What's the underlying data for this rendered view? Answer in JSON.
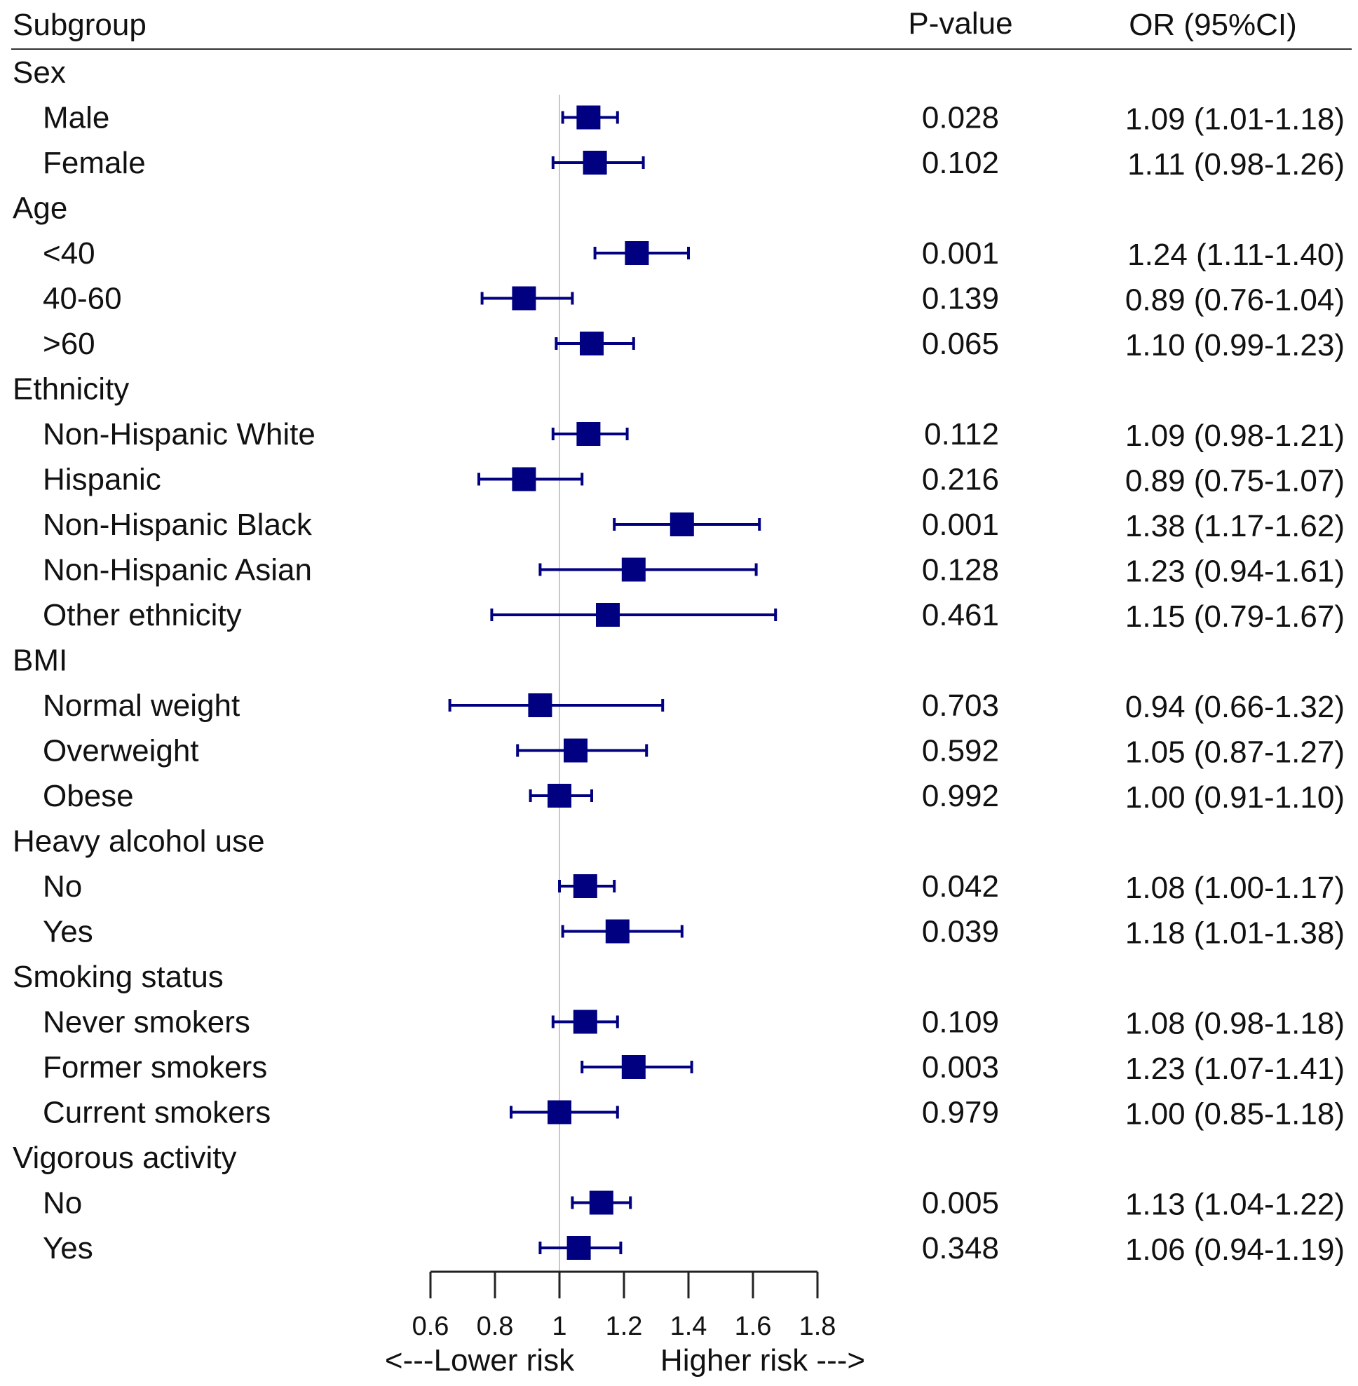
{
  "chart_data": {
    "type": "forest",
    "headers": {
      "subgroup": "Subgroup",
      "pvalue": "P-value",
      "or": "OR (95%CI)"
    },
    "xlim": [
      0.6,
      1.8
    ],
    "xticks": [
      "0.6",
      "0.8",
      "1",
      "1.2",
      "1.4",
      "1.6",
      "1.8"
    ],
    "xtick_values": [
      0.6,
      0.8,
      1.0,
      1.2,
      1.4,
      1.6,
      1.8
    ],
    "reference_line": 1,
    "xlabel_left": "<---Lower risk",
    "xlabel_right": "Higher risk --->",
    "marker_color": "#000080",
    "rows": [
      {
        "label": "Sex",
        "group": true
      },
      {
        "label": "Male",
        "p": "0.028",
        "or_text": "1.09 (1.01-1.18)",
        "or": 1.09,
        "lo": 1.01,
        "hi": 1.18
      },
      {
        "label": "Female",
        "p": "0.102",
        "or_text": "1.11 (0.98-1.26)",
        "or": 1.11,
        "lo": 0.98,
        "hi": 1.26
      },
      {
        "label": "Age",
        "group": true
      },
      {
        "label": "<40",
        "p": "0.001",
        "or_text": "1.24 (1.11-1.40)",
        "or": 1.24,
        "lo": 1.11,
        "hi": 1.4
      },
      {
        "label": "40-60",
        "p": "0.139",
        "or_text": "0.89 (0.76-1.04)",
        "or": 0.89,
        "lo": 0.76,
        "hi": 1.04
      },
      {
        "label": ">60",
        "p": "0.065",
        "or_text": "1.10 (0.99-1.23)",
        "or": 1.1,
        "lo": 0.99,
        "hi": 1.23
      },
      {
        "label": "Ethnicity",
        "group": true
      },
      {
        "label": "Non-Hispanic White",
        "p": "0.112",
        "or_text": "1.09 (0.98-1.21)",
        "or": 1.09,
        "lo": 0.98,
        "hi": 1.21
      },
      {
        "label": "Hispanic",
        "p": "0.216",
        "or_text": "0.89 (0.75-1.07)",
        "or": 0.89,
        "lo": 0.75,
        "hi": 1.07
      },
      {
        "label": "Non-Hispanic Black",
        "p": "0.001",
        "or_text": "1.38 (1.17-1.62)",
        "or": 1.38,
        "lo": 1.17,
        "hi": 1.62
      },
      {
        "label": "Non-Hispanic Asian",
        "p": "0.128",
        "or_text": "1.23 (0.94-1.61)",
        "or": 1.23,
        "lo": 0.94,
        "hi": 1.61
      },
      {
        "label": "Other ethnicity",
        "p": "0.461",
        "or_text": "1.15 (0.79-1.67)",
        "or": 1.15,
        "lo": 0.79,
        "hi": 1.67
      },
      {
        "label": "BMI",
        "group": true
      },
      {
        "label": "Normal weight",
        "p": "0.703",
        "or_text": "0.94 (0.66-1.32)",
        "or": 0.94,
        "lo": 0.66,
        "hi": 1.32
      },
      {
        "label": "Overweight",
        "p": "0.592",
        "or_text": "1.05 (0.87-1.27)",
        "or": 1.05,
        "lo": 0.87,
        "hi": 1.27
      },
      {
        "label": "Obese",
        "p": "0.992",
        "or_text": "1.00 (0.91-1.10)",
        "or": 1.0,
        "lo": 0.91,
        "hi": 1.1
      },
      {
        "label": "Heavy alcohol use",
        "group": true
      },
      {
        "label": "No",
        "p": "0.042",
        "or_text": "1.08 (1.00-1.17)",
        "or": 1.08,
        "lo": 1.0,
        "hi": 1.17
      },
      {
        "label": "Yes",
        "p": "0.039",
        "or_text": "1.18 (1.01-1.38)",
        "or": 1.18,
        "lo": 1.01,
        "hi": 1.38
      },
      {
        "label": "Smoking status",
        "group": true
      },
      {
        "label": "Never smokers",
        "p": "0.109",
        "or_text": "1.08 (0.98-1.18)",
        "or": 1.08,
        "lo": 0.98,
        "hi": 1.18
      },
      {
        "label": "Former smokers",
        "p": "0.003",
        "or_text": "1.23 (1.07-1.41)",
        "or": 1.23,
        "lo": 1.07,
        "hi": 1.41
      },
      {
        "label": "Current smokers",
        "p": "0.979",
        "or_text": "1.00 (0.85-1.18)",
        "or": 1.0,
        "lo": 0.85,
        "hi": 1.18
      },
      {
        "label": "Vigorous activity",
        "group": true
      },
      {
        "label": "No",
        "p": "0.005",
        "or_text": "1.13 (1.04-1.22)",
        "or": 1.13,
        "lo": 1.04,
        "hi": 1.22
      },
      {
        "label": "Yes",
        "p": "0.348",
        "or_text": "1.06 (0.94-1.19)",
        "or": 1.06,
        "lo": 0.94,
        "hi": 1.19
      }
    ]
  }
}
